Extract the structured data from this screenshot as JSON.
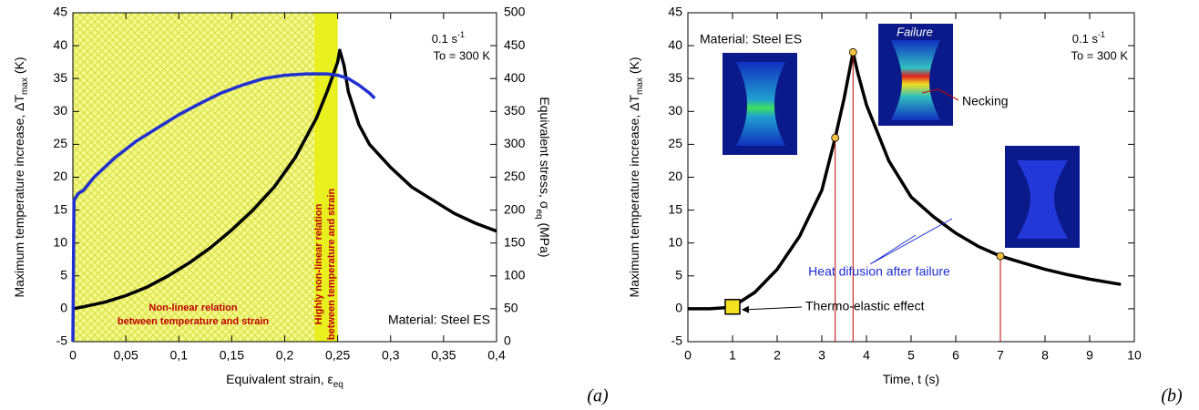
{
  "chart_data": [
    {
      "type": "line",
      "xlabel": "Equivalent strain, ε",
      "xlabel_sub": "eq",
      "ylabel": "Maximum temperature increase, ΔT",
      "ylabel_sub": "max",
      "ylabel_end": " (K)",
      "y2label": "Equivalent stress, σ",
      "y2label_sub": "eq",
      "y2label_end": " (MPa)",
      "xlim": [
        0,
        0.4
      ],
      "xticks": [
        0,
        {
          "value": 0.05,
          "label": "0,05"
        },
        {
          "value": 0.1,
          "label": "0,1"
        },
        {
          "value": 0.15,
          "label": "0,15"
        },
        {
          "value": 0.2,
          "label": "0,2"
        },
        {
          "value": 0.25,
          "label": "0,25"
        },
        {
          "value": 0.3,
          "label": "0,3"
        },
        {
          "value": 0.35,
          "label": "0,35"
        },
        {
          "value": 0.4,
          "label": "0,4"
        }
      ],
      "ylim": [
        -5,
        45
      ],
      "yticks": [
        -5,
        0,
        5,
        10,
        15,
        20,
        25,
        30,
        35,
        40,
        45
      ],
      "y2lim": [
        0,
        500
      ],
      "y2ticks": [
        0,
        50,
        100,
        150,
        200,
        250,
        300,
        350,
        400,
        450,
        500
      ],
      "shaded_regions": [
        [
          0,
          0.228
        ],
        [
          0.228,
          0.25
        ]
      ],
      "series": [
        {
          "color": "#000000",
          "x": [
            0,
            0.01,
            0.03,
            0.05,
            0.07,
            0.09,
            0.11,
            0.13,
            0.15,
            0.17,
            0.19,
            0.21,
            0.23,
            0.24,
            0.25,
            0.252,
            0.256,
            0.26,
            0.27,
            0.28,
            0.3,
            0.32,
            0.34,
            0.36,
            0.38,
            0.4
          ],
          "values": [
            0,
            0.3,
            1,
            2,
            3.3,
            5,
            7,
            9.3,
            12,
            15,
            18.5,
            23,
            29,
            33,
            37.5,
            39.3,
            37,
            33,
            28,
            25,
            21.5,
            18.5,
            16.5,
            14.5,
            13,
            11.8
          ]
        },
        {
          "color": "#1f2fd0",
          "axis": "y2",
          "x": [
            0,
            0.001,
            0.005,
            0.01,
            0.02,
            0.04,
            0.06,
            0.08,
            0.1,
            0.12,
            0.14,
            0.16,
            0.18,
            0.2,
            0.22,
            0.24,
            0.25,
            0.26,
            0.27,
            0.28,
            0.285
          ],
          "values": [
            0,
            215,
            225,
            230,
            250,
            280,
            305,
            325,
            345,
            362,
            378,
            390,
            400,
            405,
            407,
            407,
            405,
            400,
            390,
            378,
            370
          ]
        }
      ],
      "annotations": {
        "rate": "0.1 s",
        "rate_exp": "-1",
        "temp": "To = 300 K",
        "material": "Material: Steel ES",
        "nl1": "Non-linear relation",
        "nl2": "between temperature and strain",
        "hnl1": "Highly non-linear relation",
        "hnl2": "between temperature and strain",
        "panel": "(a)"
      }
    },
    {
      "type": "line",
      "xlabel": "Time, t (s)",
      "ylabel": "Maximum temperature increase, ΔT",
      "ylabel_sub": "max",
      "ylabel_end": " (K)",
      "xlim": [
        0,
        10
      ],
      "xticks": [
        0,
        1,
        2,
        3,
        4,
        5,
        6,
        7,
        8,
        9,
        10
      ],
      "ylim": [
        -5,
        45
      ],
      "yticks": [
        -5,
        0,
        5,
        10,
        15,
        20,
        25,
        30,
        35,
        40,
        45
      ],
      "series": [
        {
          "color": "#000000",
          "x": [
            0,
            0.5,
            0.9,
            1,
            1.5,
            2,
            2.5,
            3,
            3.3,
            3.5,
            3.7,
            3.8,
            4,
            4.5,
            5,
            5.5,
            6,
            6.5,
            7,
            7.5,
            8,
            8.5,
            9,
            9.7
          ],
          "values": [
            0,
            0,
            0.2,
            0.3,
            2.5,
            6,
            11,
            18,
            26,
            32,
            39,
            36,
            31,
            22.5,
            17,
            14,
            11.5,
            9.5,
            8,
            7,
            6,
            5.2,
            4.5,
            3.7
          ]
        }
      ],
      "points": {
        "color": "#f5c242",
        "x": [
          3.3,
          3.7,
          7
        ],
        "values": [
          26,
          39,
          8
        ]
      },
      "box_point": {
        "color": "#f5e020",
        "x": 1,
        "y": 0.3
      },
      "annotations": {
        "rate": "0.1 s",
        "rate_exp": "-1",
        "temp": "To = 300 K",
        "material": "Material: Steel ES",
        "failure": "Failure",
        "necking": "Necking",
        "heat": "Heat difusion after failure",
        "thermo": "Thermo-elastic effect",
        "panel": "(b)"
      }
    }
  ]
}
